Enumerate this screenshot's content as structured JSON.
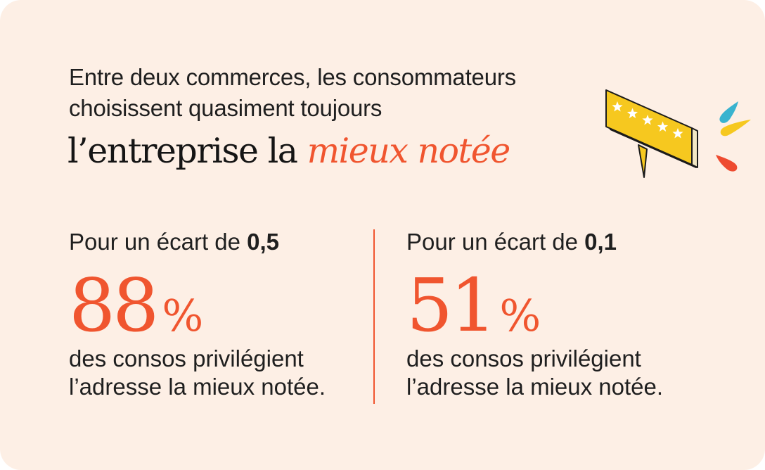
{
  "intro": {
    "line1": "Entre deux commerces, les consommateurs",
    "line2": "choisissent quasiment toujours"
  },
  "headline": {
    "text": "l’entreprise la ",
    "accent": "mieux notée"
  },
  "stats": [
    {
      "gap_prefix": "Pour un écart de ",
      "gap_value": "0,5",
      "number": "88",
      "unit": "%",
      "desc_line1": "des consos privilégient",
      "desc_line2": "l’adresse la mieux notée."
    },
    {
      "gap_prefix": "Pour un écart de ",
      "gap_value": "0,1",
      "number": "51",
      "unit": "%",
      "desc_line1": "des consos privilégient",
      "desc_line2": "l’adresse la mieux notée."
    }
  ],
  "illustration": {
    "icon": "rating-bubble-icon",
    "stars": 5
  },
  "colors": {
    "background": "#fdefe5",
    "accent": "#f0552f",
    "bubble": "#f6c81f",
    "drop_blue": "#39b3cf",
    "drop_yellow": "#f6c81f",
    "drop_red": "#ee4b30"
  }
}
